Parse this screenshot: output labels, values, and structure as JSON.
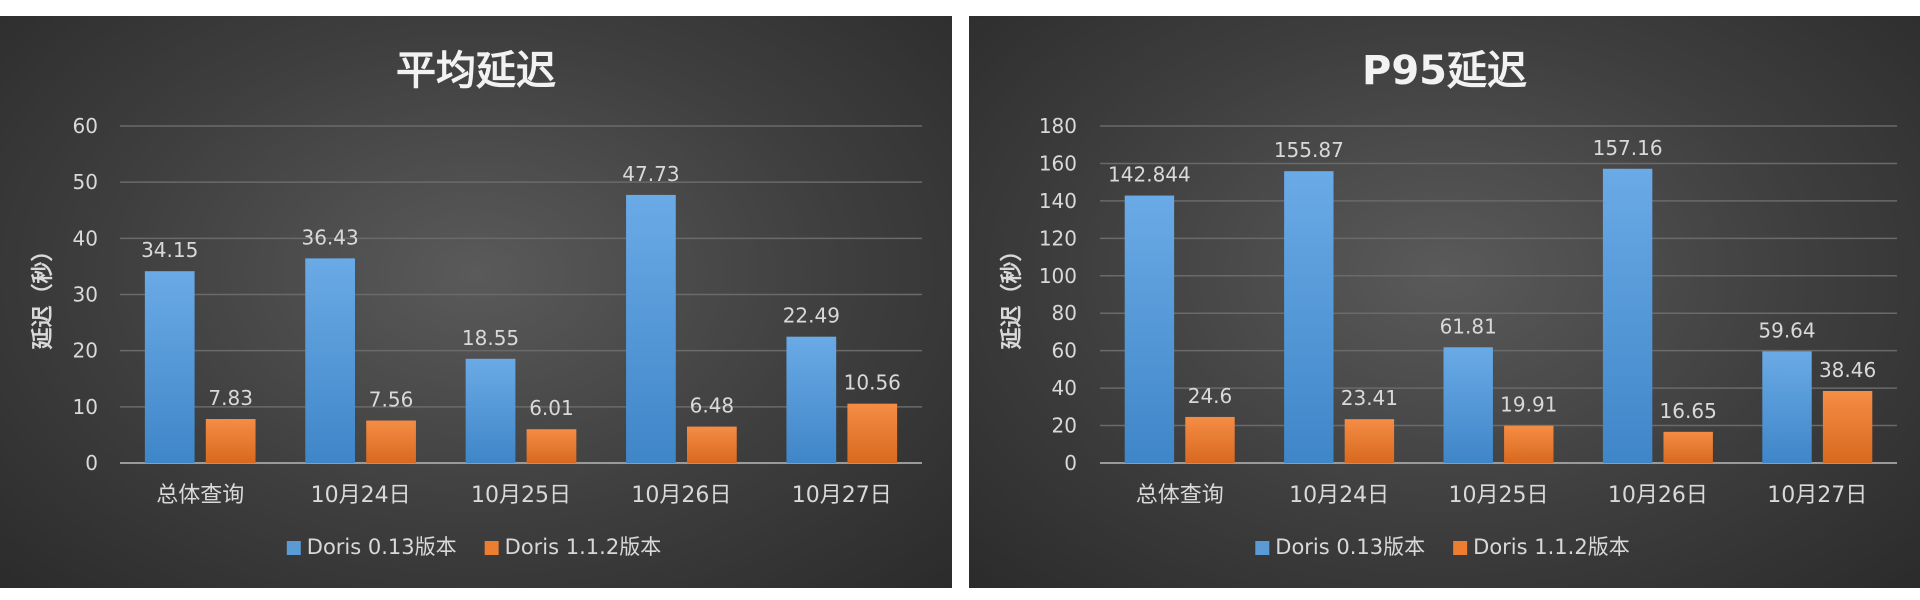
{
  "colors": {
    "series_1": "#5b9bd5",
    "series_2": "#ed7d31"
  },
  "chart_data": [
    {
      "type": "bar",
      "title": "平均延迟",
      "xlabel": "",
      "ylabel": "延迟（秒）",
      "ylim": [
        0,
        60
      ],
      "yticks": [
        0,
        10,
        20,
        30,
        40,
        50,
        60
      ],
      "grid": true,
      "legend": "bottom",
      "categories": [
        "总体查询",
        "10月24日",
        "10月25日",
        "10月26日",
        "10月27日"
      ],
      "series": [
        {
          "name": "Doris 0.13版本",
          "values": [
            34.15,
            36.43,
            18.55,
            47.73,
            22.49
          ],
          "labels": [
            "34.15",
            "36.43",
            "18.55",
            "47.73",
            "22.49"
          ]
        },
        {
          "name": "Doris 1.1.2版本",
          "values": [
            7.83,
            7.56,
            6.01,
            6.48,
            10.56
          ],
          "labels": [
            "7.83",
            "7.56",
            "6.01",
            "6.48",
            "10.56"
          ]
        }
      ]
    },
    {
      "type": "bar",
      "title": "P95延迟",
      "xlabel": "",
      "ylabel": "延迟（秒）",
      "ylim": [
        0,
        180
      ],
      "yticks": [
        0,
        20,
        40,
        60,
        80,
        100,
        120,
        140,
        160,
        180
      ],
      "grid": true,
      "legend": "bottom",
      "categories": [
        "总体查询",
        "10月24日",
        "10月25日",
        "10月26日",
        "10月27日"
      ],
      "series": [
        {
          "name": "Doris 0.13版本",
          "values": [
            142.844,
            155.87,
            61.81,
            157.16,
            59.64
          ],
          "labels": [
            "142.844",
            "155.87",
            "61.81",
            "157.16",
            "59.64"
          ]
        },
        {
          "name": "Doris 1.1.2版本",
          "values": [
            24.6,
            23.41,
            19.91,
            16.65,
            38.46
          ],
          "labels": [
            "24.6",
            "23.41",
            "19.91",
            "16.65",
            "38.46"
          ]
        }
      ]
    }
  ]
}
